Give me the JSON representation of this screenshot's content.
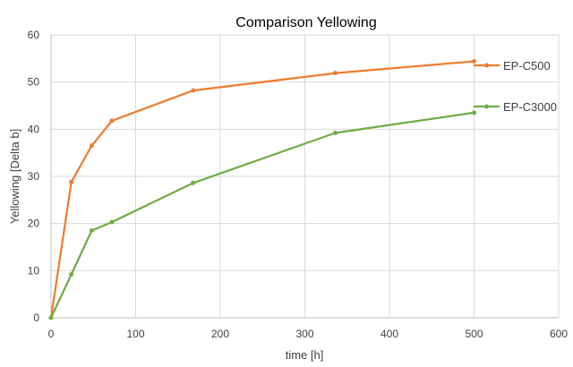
{
  "chart_data": {
    "type": "line",
    "title": "Comparison Yellowing",
    "xlabel": "time [h]",
    "ylabel": "Yellowing [Delta b]",
    "xlim": [
      0,
      600
    ],
    "ylim": [
      0,
      60
    ],
    "xticks": [
      0,
      100,
      200,
      300,
      400,
      500,
      600
    ],
    "yticks": [
      0,
      10,
      20,
      30,
      40,
      50,
      60
    ],
    "grid": true,
    "legend_position": "right",
    "series": [
      {
        "name": "EP-C500",
        "color": "#ED7D31",
        "points": [
          [
            0,
            0
          ],
          [
            24,
            28.8
          ],
          [
            48,
            36.5
          ],
          [
            72,
            41.8
          ],
          [
            168,
            48.2
          ],
          [
            336,
            51.9
          ],
          [
            500,
            54.4
          ]
        ]
      },
      {
        "name": "EP-C3000",
        "color": "#70AD47",
        "points": [
          [
            0,
            0
          ],
          [
            24,
            9.2
          ],
          [
            48,
            18.5
          ],
          [
            72,
            20.3
          ],
          [
            168,
            28.6
          ],
          [
            336,
            39.2
          ],
          [
            500,
            43.5
          ]
        ]
      }
    ]
  }
}
